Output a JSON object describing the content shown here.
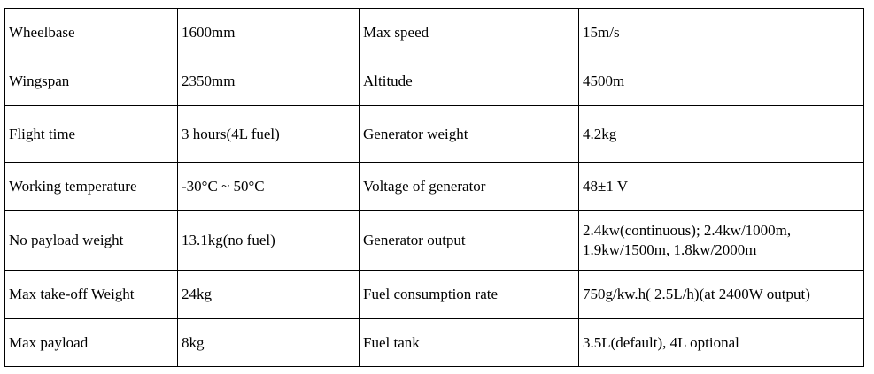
{
  "table": {
    "rows": [
      {
        "l1": "Wheelbase",
        "v1": "1600mm",
        "l2": "Max speed",
        "v2": "15m/s"
      },
      {
        "l1": "Wingspan",
        "v1": "2350mm",
        "l2": "Altitude",
        "v2": "4500m"
      },
      {
        "l1": "Flight time",
        "v1": "3 hours(4L fuel)",
        "l2": "Generator weight",
        "v2": "4.2kg"
      },
      {
        "l1": "Working temperature",
        "v1": "-30°C ~ 50°C",
        "l2": "Voltage of generator",
        "v2": "48±1 V"
      },
      {
        "l1": "No payload weight",
        "v1": "13.1kg(no fuel)",
        "l2": "Generator output",
        "v2": "2.4kw(continuous); 2.4kw/1000m, 1.9kw/1500m, 1.8kw/2000m"
      },
      {
        "l1": "Max take-off Weight",
        "v1": "24kg",
        "l2": "Fuel consumption rate",
        "v2": "750g/kw.h( 2.5L/h)(at 2400W output)"
      },
      {
        "l1": "Max payload",
        "v1": "8kg",
        "l2": "Fuel tank",
        "v2": "3.5L(default), 4L optional"
      }
    ]
  }
}
